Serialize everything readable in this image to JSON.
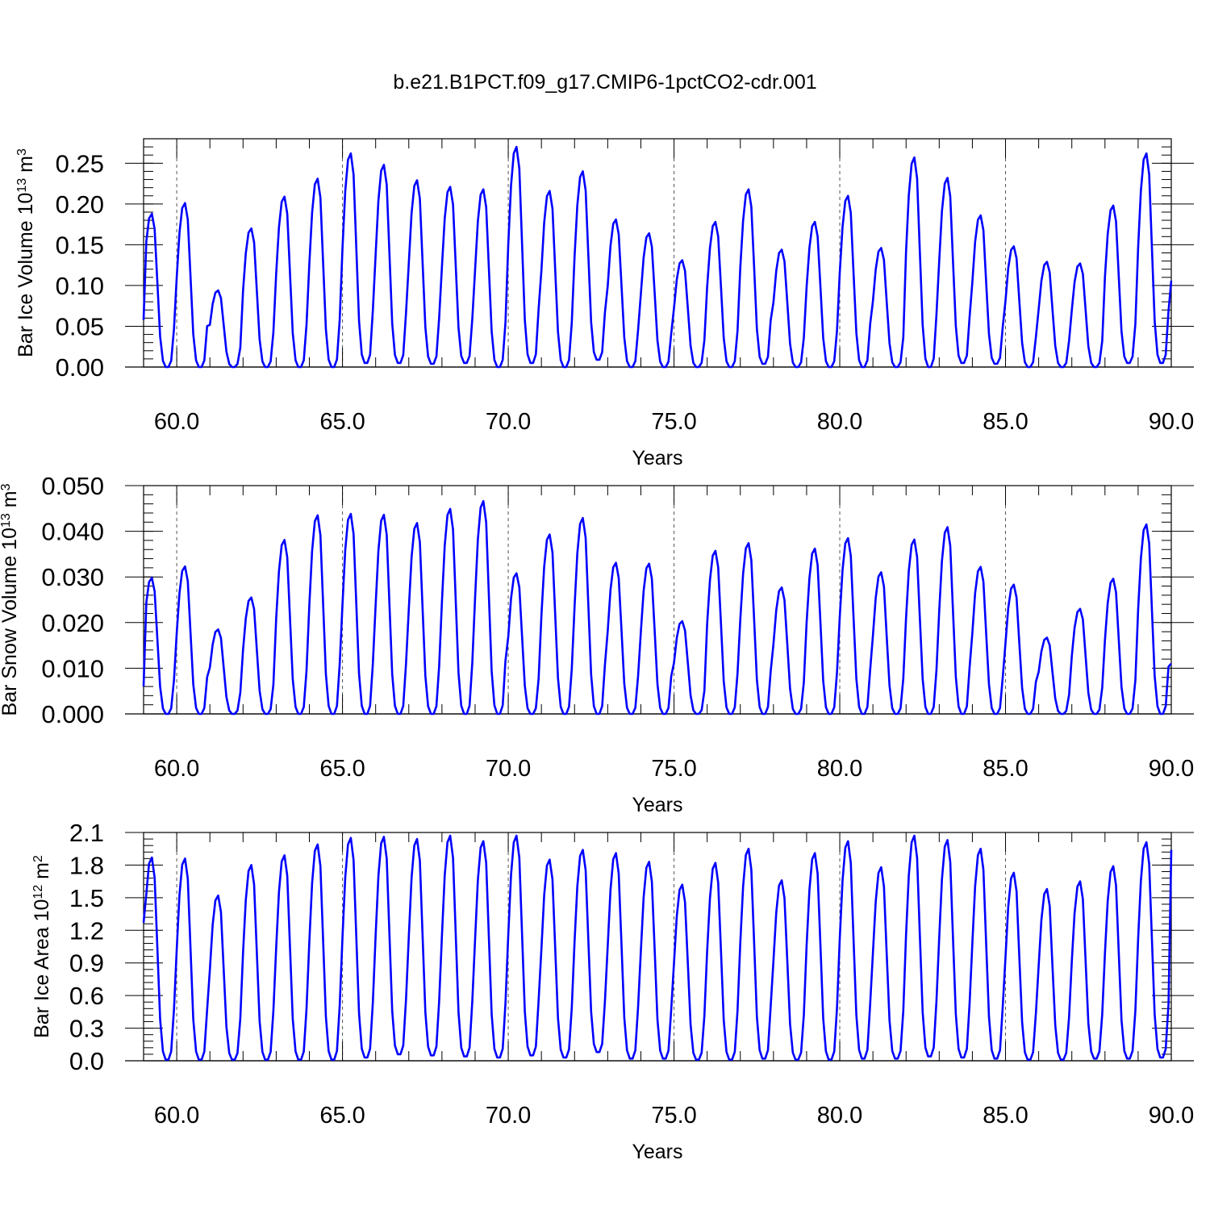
{
  "title": "b.e21.B1PCT.f09_g17.CMIP6-1pctCO2-cdr.001",
  "colors": {
    "series": "#0000ff",
    "axis": "#000000",
    "refline": "#555555"
  },
  "chart_data": [
    {
      "type": "line",
      "xlabel": "Years",
      "ylabel": {
        "main": "Bar Ice Volume 10",
        "sup": "13",
        "unit": " m",
        "unit_sup": "3"
      },
      "xlim": [
        59.0,
        90.0
      ],
      "ylim": [
        0.0,
        0.28
      ],
      "xticks": [
        "60.0",
        "65.0",
        "70.0",
        "75.0",
        "80.0",
        "85.0",
        "90.0"
      ],
      "yticks": [
        "0.00",
        "0.05",
        "0.10",
        "0.15",
        "0.20",
        "0.25"
      ],
      "grid": "dashed vertical lines at every 5 years",
      "series": [
        {
          "start": 59.0,
          "step": 0.0833,
          "annual_peaks": [
            0.188,
            0.201,
            0.094,
            0.17,
            0.209,
            0.231,
            0.262,
            0.248,
            0.229,
            0.221,
            0.218,
            0.27,
            0.216,
            0.24,
            0.181,
            0.164,
            0.131,
            0.178,
            0.218,
            0.144,
            0.178,
            0.21,
            0.146,
            0.257,
            0.232,
            0.186,
            0.148,
            0.129,
            0.127,
            0.198,
            0.262
          ],
          "annual_minima": [
            0.0,
            0.0,
            0.0,
            0.0,
            0.0,
            0.0,
            0.005,
            0.005,
            0.004,
            0.005,
            0.0,
            0.005,
            0.0,
            0.009,
            0.0,
            0.0,
            0.0,
            0.0,
            0.004,
            0.0,
            0.0,
            0.0,
            0.0,
            0.0,
            0.005,
            0.004,
            0.0,
            0.0,
            0.0,
            0.005,
            0.005
          ],
          "start_value": 0.058,
          "end_value": 0.106
        }
      ]
    },
    {
      "type": "line",
      "xlabel": "Years",
      "ylabel": {
        "main": "Bar Snow Volume 10",
        "sup": "13",
        "unit": " m",
        "unit_sup": "3"
      },
      "xlim": [
        59.0,
        90.0
      ],
      "ylim": [
        0.0,
        0.05
      ],
      "xticks": [
        "60.0",
        "65.0",
        "70.0",
        "75.0",
        "80.0",
        "85.0",
        "90.0"
      ],
      "yticks": [
        "0.000",
        "0.010",
        "0.020",
        "0.030",
        "0.040",
        "0.050"
      ],
      "grid": "dashed vertical lines at every 5 years",
      "series": [
        {
          "start": 59.0,
          "step": 0.0833,
          "annual_peaks": [
            0.0298,
            0.0323,
            0.0185,
            0.0255,
            0.0381,
            0.0435,
            0.0438,
            0.0436,
            0.0418,
            0.0449,
            0.0466,
            0.0308,
            0.0393,
            0.0429,
            0.0331,
            0.0329,
            0.0203,
            0.0357,
            0.0374,
            0.0277,
            0.0362,
            0.0385,
            0.031,
            0.0382,
            0.0409,
            0.0322,
            0.0283,
            0.0167,
            0.023,
            0.0296,
            0.0415
          ],
          "annual_minima": [
            0,
            0,
            0,
            0,
            0,
            0,
            0,
            0,
            0,
            0,
            0,
            0,
            0,
            0,
            0,
            0,
            0,
            0,
            0,
            0,
            0,
            0,
            0,
            0,
            0,
            0,
            0,
            0,
            0,
            0,
            0
          ],
          "start_value": 0.006,
          "end_value": 0.011
        }
      ]
    },
    {
      "type": "line",
      "xlabel": "Years",
      "ylabel": {
        "main": "Bar Ice Area 10",
        "sup": "12",
        "unit": " m",
        "unit_sup": "2"
      },
      "xlim": [
        59.0,
        90.0
      ],
      "ylim": [
        0.0,
        2.1
      ],
      "xticks": [
        "60.0",
        "65.0",
        "70.0",
        "75.0",
        "80.0",
        "85.0",
        "90.0"
      ],
      "yticks": [
        "0.0",
        "0.3",
        "0.6",
        "0.9",
        "1.2",
        "1.5",
        "1.8",
        "2.1"
      ],
      "grid": "dashed vertical lines at every 5 years",
      "series": [
        {
          "start": 59.0,
          "step": 0.0833,
          "annual_peaks": [
            1.87,
            1.86,
            1.52,
            1.8,
            1.89,
            1.99,
            2.05,
            2.06,
            2.04,
            2.07,
            2.02,
            2.07,
            1.85,
            1.94,
            1.91,
            1.83,
            1.62,
            1.82,
            1.95,
            1.66,
            1.91,
            2.02,
            1.78,
            2.07,
            2.03,
            1.95,
            1.73,
            1.58,
            1.65,
            1.79,
            2.01
          ],
          "annual_minima": [
            0.01,
            0.01,
            0.01,
            0.01,
            0.01,
            0.01,
            0.03,
            0.06,
            0.05,
            0.04,
            0.03,
            0.05,
            0.03,
            0.08,
            0.02,
            0.02,
            0.01,
            0.01,
            0.02,
            0.01,
            0.01,
            0.02,
            0.02,
            0.04,
            0.03,
            0.02,
            0.01,
            0.01,
            0.02,
            0.02,
            0.03
          ],
          "start_value": 1.27,
          "end_value": 1.94
        }
      ]
    }
  ]
}
